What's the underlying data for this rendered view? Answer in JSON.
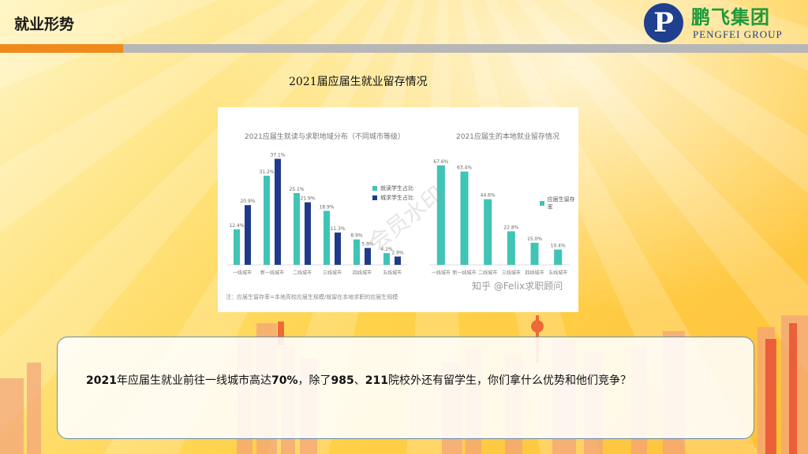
{
  "header": {
    "title": "就业形势",
    "accent_color": "#f08a1c",
    "bar_color": "#b7b7b7"
  },
  "logo": {
    "mark": "P",
    "cn_name": "鹏飞集团",
    "en_name": "PENGFEI GROUP"
  },
  "slide": {
    "chart_title": "2021届应届生就业留存情况",
    "body_parts": [
      "2021",
      "年应届生就业前往一线城市高达",
      "70%",
      "，除了",
      "985",
      "、",
      "211",
      "院校外还有留学生，你们拿什么优势和他们竞争？"
    ]
  },
  "image": {
    "credit": "知乎 @Felix求职顾问",
    "watermark": "会员水印",
    "note": "注：应届生留存率=本地高校应届生规模/就留在本地求职的应届生规模"
  },
  "chart_data": [
    {
      "type": "bar",
      "title": "2021应届生就读与求职地域分布（不同城市等级）",
      "categories": [
        "一线城市",
        "新一线城市",
        "二线城市",
        "三线城市",
        "四线城市",
        "五线城市"
      ],
      "series": [
        {
          "name": "就读学生占比",
          "values": [
            12.4,
            31.2,
            25.1,
            18.9,
            8.9,
            4.1
          ],
          "color": "#3fc4b5"
        },
        {
          "name": "城求学生占比",
          "values": [
            20.9,
            37.1,
            21.9,
            11.3,
            5.9,
            2.9
          ],
          "color": "#1f3a8a"
        }
      ],
      "ylim": [
        0,
        40
      ]
    },
    {
      "type": "bar",
      "title": "2021应届生的本地就业留存情况",
      "categories": [
        "一线城市",
        "新一线城市",
        "二线城市",
        "三线城市",
        "四线城市",
        "五线城市"
      ],
      "series": [
        {
          "name": "应届生留存率",
          "values": [
            67.6,
            63.4,
            44.6,
            22.8,
            15.0,
            10.4
          ],
          "color": "#3fc4b5"
        }
      ],
      "ylim": [
        0,
        75
      ]
    }
  ]
}
